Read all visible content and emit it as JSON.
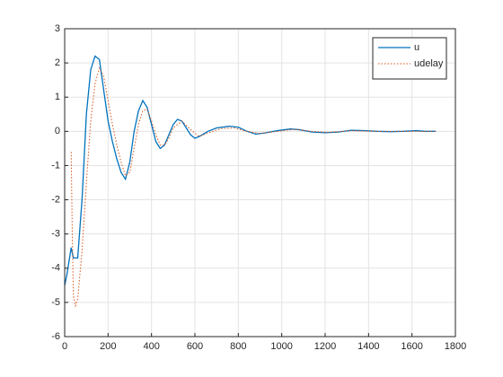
{
  "chart_data": {
    "type": "line",
    "xlim": [
      0,
      1800
    ],
    "xticks": [
      0,
      200,
      400,
      600,
      800,
      1000,
      1200,
      1400,
      1600,
      1800
    ],
    "ylim": [
      -6,
      3
    ],
    "yticks": [
      -6,
      -5,
      -4,
      -3,
      -2,
      -1,
      0,
      1,
      2,
      3
    ],
    "grid": true,
    "legend": "northeast",
    "series": [
      {
        "name": "u",
        "color": "#0072bd",
        "style": "solid",
        "x": [
          0,
          10,
          20,
          30,
          40,
          60,
          80,
          100,
          120,
          140,
          160,
          180,
          200,
          220,
          240,
          260,
          280,
          300,
          320,
          340,
          360,
          380,
          400,
          420,
          440,
          460,
          480,
          500,
          520,
          540,
          560,
          580,
          600,
          620,
          660,
          700,
          760,
          800,
          840,
          880,
          920,
          980,
          1040,
          1080,
          1140,
          1200,
          1260,
          1320,
          1380,
          1440,
          1500,
          1560,
          1620,
          1660,
          1710
        ],
        "values": [
          -4.5,
          -4.2,
          -3.8,
          -3.4,
          -3.7,
          -3.7,
          -2.0,
          0.5,
          1.8,
          2.2,
          2.1,
          1.2,
          0.3,
          -0.3,
          -0.8,
          -1.2,
          -1.4,
          -0.9,
          0.0,
          0.6,
          0.9,
          0.7,
          0.2,
          -0.3,
          -0.5,
          -0.4,
          -0.1,
          0.2,
          0.35,
          0.3,
          0.1,
          -0.1,
          -0.2,
          -0.15,
          0.0,
          0.1,
          0.15,
          0.12,
          0.0,
          -0.08,
          -0.05,
          0.02,
          0.07,
          0.05,
          -0.02,
          -0.04,
          -0.02,
          0.03,
          0.02,
          0.0,
          -0.01,
          0.0,
          0.02,
          0.0,
          0.0
        ]
      },
      {
        "name": "udelay",
        "color": "#d95319",
        "style": "dotted",
        "x": [
          30,
          35,
          40,
          50,
          60,
          80,
          100,
          120,
          140,
          160,
          180,
          200,
          220,
          240,
          260,
          280,
          300,
          320,
          340,
          360,
          380,
          400,
          420,
          440,
          460,
          480,
          500,
          540,
          580,
          620,
          660,
          720,
          780,
          840,
          900,
          980,
          1060,
          1140,
          1220,
          1320,
          1440,
          1560,
          1710
        ],
        "values": [
          -0.6,
          -3.0,
          -4.8,
          -5.1,
          -4.9,
          -3.5,
          -1.5,
          0.3,
          1.4,
          1.85,
          1.6,
          0.9,
          0.2,
          -0.4,
          -0.9,
          -1.3,
          -1.2,
          -0.5,
          0.2,
          0.6,
          0.65,
          0.3,
          -0.1,
          -0.4,
          -0.4,
          -0.2,
          0.1,
          0.3,
          0.05,
          -0.15,
          -0.05,
          0.08,
          0.1,
          0.0,
          -0.06,
          0.0,
          0.06,
          0.0,
          -0.03,
          0.02,
          0.0,
          0.0,
          0.0
        ]
      }
    ]
  }
}
